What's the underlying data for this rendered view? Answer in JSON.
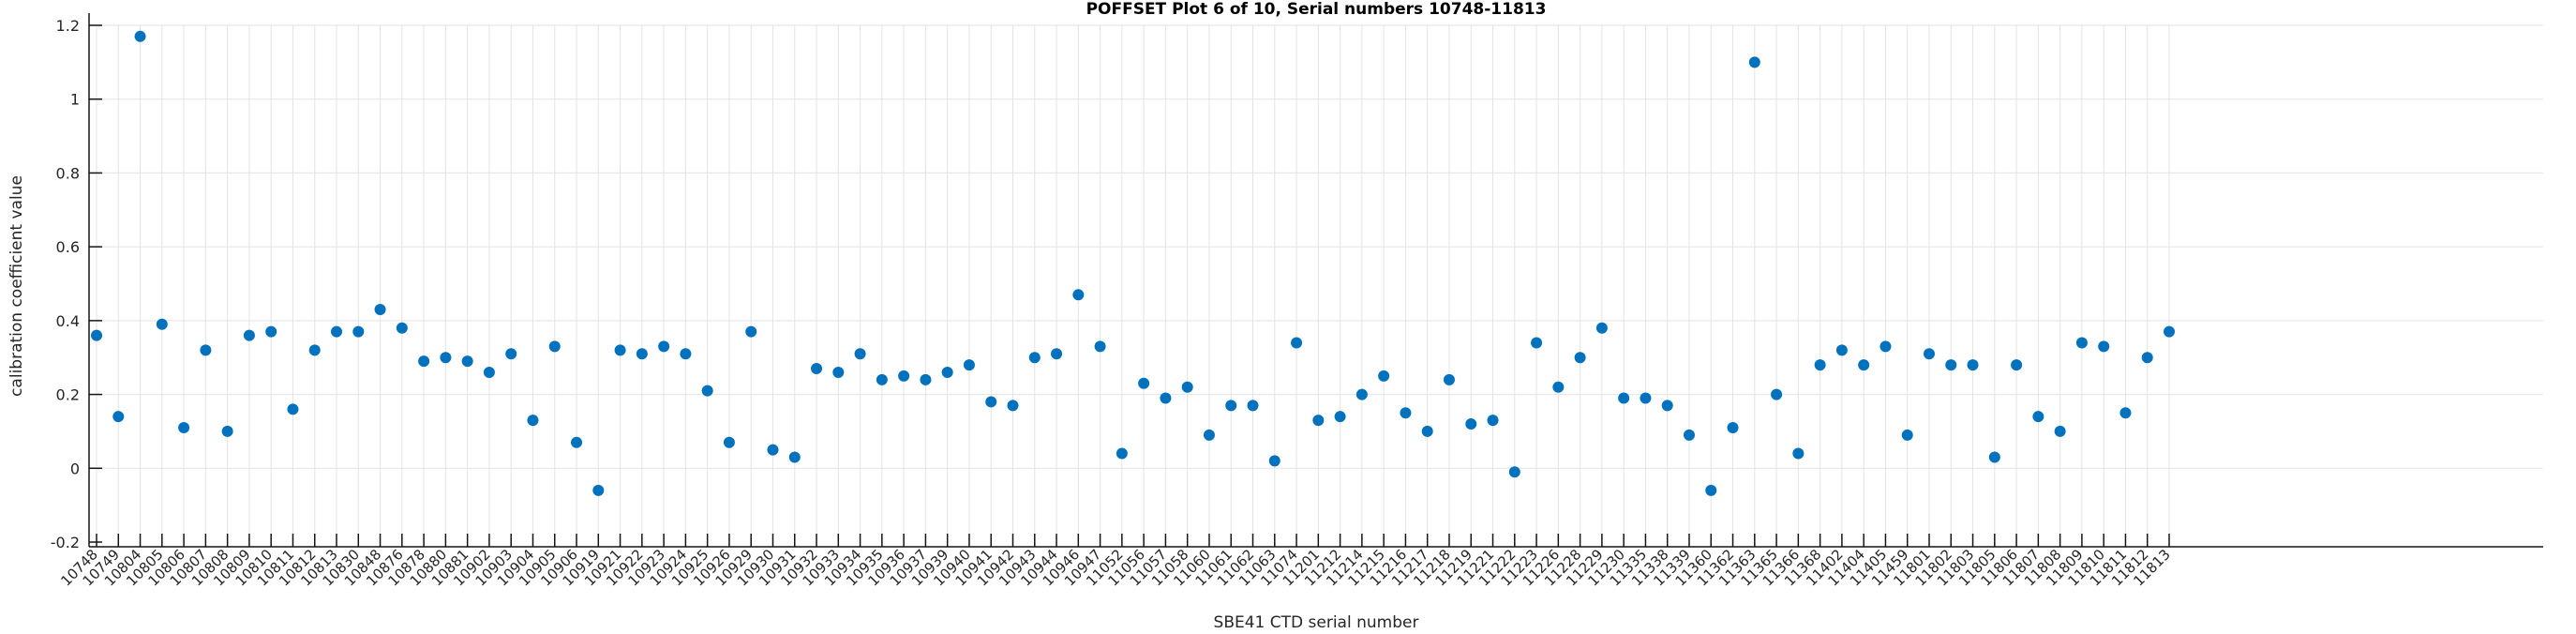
{
  "chart_data": {
    "type": "scatter",
    "title": "POFFSET Plot 6 of 10, Serial numbers 10748-11813",
    "xlabel": "SBE41 CTD serial number",
    "ylabel": "calibration coefficient value",
    "ylim": [
      -0.2,
      1.2
    ],
    "y_ticks": [
      -0.2,
      0,
      0.2,
      0.4,
      0.6,
      0.8,
      1,
      1.2
    ],
    "grid": "on",
    "legend_position": "none",
    "marker_color": "#0072BD",
    "grid_color": "#e3e3e3",
    "axis_color": "#151515",
    "tick_label_color": "#262626",
    "categories": [
      "10748",
      "10749",
      "10804",
      "10805",
      "10806",
      "10807",
      "10808",
      "10809",
      "10810",
      "10811",
      "10812",
      "10813",
      "10830",
      "10848",
      "10876",
      "10878",
      "10880",
      "10881",
      "10902",
      "10903",
      "10904",
      "10905",
      "10906",
      "10919",
      "10921",
      "10922",
      "10923",
      "10924",
      "10925",
      "10926",
      "10929",
      "10930",
      "10931",
      "10932",
      "10933",
      "10934",
      "10935",
      "10936",
      "10937",
      "10939",
      "10940",
      "10941",
      "10942",
      "10943",
      "10944",
      "10946",
      "10947",
      "11052",
      "11056",
      "11057",
      "11058",
      "11060",
      "11061",
      "11062",
      "11063",
      "11074",
      "11201",
      "11212",
      "11214",
      "11215",
      "11216",
      "11217",
      "11218",
      "11219",
      "11221",
      "11222",
      "11223",
      "11226",
      "11228",
      "11229",
      "11230",
      "11335",
      "11338",
      "11339",
      "11360",
      "11362",
      "11363",
      "11365",
      "11366",
      "11368",
      "11402",
      "11404",
      "11405",
      "11459",
      "11801",
      "11802",
      "11803",
      "11805",
      "11806",
      "11807",
      "11808",
      "11809",
      "11810",
      "11811",
      "11812",
      "11813"
    ],
    "values": [
      0.36,
      0.14,
      1.17,
      0.39,
      0.11,
      0.32,
      0.1,
      0.36,
      0.37,
      0.16,
      0.32,
      0.37,
      0.37,
      0.43,
      0.38,
      0.29,
      0.3,
      0.29,
      0.26,
      0.31,
      0.13,
      0.33,
      0.07,
      -0.06,
      0.32,
      0.31,
      0.33,
      0.31,
      0.21,
      0.07,
      0.37,
      0.05,
      0.03,
      0.27,
      0.26,
      0.31,
      0.24,
      0.25,
      0.24,
      0.26,
      0.28,
      0.18,
      0.17,
      0.3,
      0.31,
      0.47,
      0.33,
      0.04,
      0.23,
      0.19,
      0.22,
      0.09,
      0.17,
      0.17,
      0.02,
      0.34,
      0.13,
      0.14,
      0.2,
      0.25,
      0.15,
      0.1,
      0.24,
      0.12,
      0.13,
      -0.01,
      0.34,
      0.22,
      0.3,
      0.38,
      0.19,
      0.19,
      0.17,
      0.09,
      -0.06,
      0.11,
      1.1,
      0.2,
      0.04,
      0.28,
      0.32,
      0.28,
      0.33,
      0.09,
      0.31,
      0.28,
      0.28,
      0.03,
      0.28,
      0.14,
      0.1,
      0.34,
      0.33,
      0.15,
      0.3,
      0.37
    ]
  }
}
